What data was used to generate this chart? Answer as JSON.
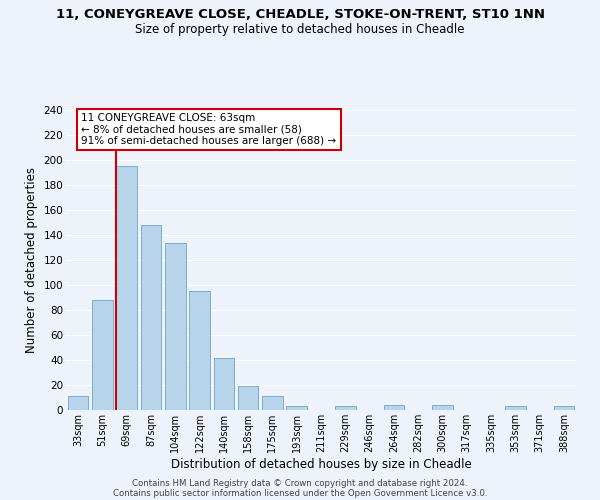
{
  "title_main": "11, CONEYGREAVE CLOSE, CHEADLE, STOKE-ON-TRENT, ST10 1NN",
  "title_sub": "Size of property relative to detached houses in Cheadle",
  "xlabel": "Distribution of detached houses by size in Cheadle",
  "ylabel": "Number of detached properties",
  "bar_labels": [
    "33sqm",
    "51sqm",
    "69sqm",
    "87sqm",
    "104sqm",
    "122sqm",
    "140sqm",
    "158sqm",
    "175sqm",
    "193sqm",
    "211sqm",
    "229sqm",
    "246sqm",
    "264sqm",
    "282sqm",
    "300sqm",
    "317sqm",
    "335sqm",
    "353sqm",
    "371sqm",
    "388sqm"
  ],
  "bar_heights": [
    11,
    88,
    195,
    148,
    134,
    95,
    42,
    19,
    11,
    3,
    0,
    3,
    0,
    4,
    0,
    4,
    0,
    0,
    3,
    0,
    3
  ],
  "bar_color": "#b8d4ea",
  "bar_edge_color": "#7aaecf",
  "vline_color": "#cc0000",
  "annotation_text_line1": "11 CONEYGREAVE CLOSE: 63sqm",
  "annotation_text_line2": "← 8% of detached houses are smaller (58)",
  "annotation_text_line3": "91% of semi-detached houses are larger (688) →",
  "annotation_box_color": "#ffffff",
  "annotation_box_edge_color": "#cc0000",
  "yticks": [
    0,
    20,
    40,
    60,
    80,
    100,
    120,
    140,
    160,
    180,
    200,
    220,
    240
  ],
  "ylim": [
    0,
    240
  ],
  "footer_line1": "Contains HM Land Registry data © Crown copyright and database right 2024.",
  "footer_line2": "Contains public sector information licensed under the Open Government Licence v3.0.",
  "background_color": "#eef2fa",
  "grid_color": "#ffffff"
}
